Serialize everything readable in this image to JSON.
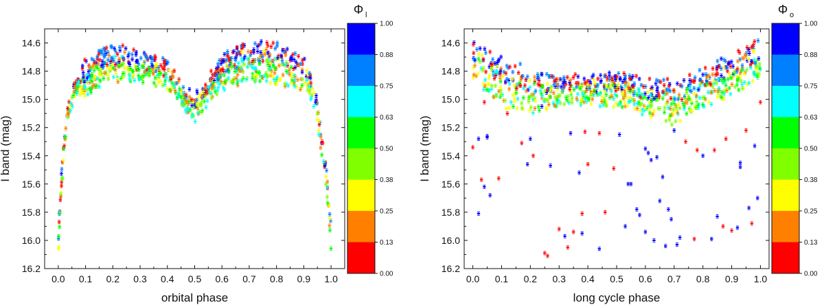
{
  "chart_data": [
    {
      "type": "scatter",
      "xlabel": "orbital phase",
      "ylabel": "I band (mag)",
      "xlim": [
        -0.05,
        1.05
      ],
      "ylim": [
        14.5,
        16.2
      ],
      "y_inverted": true,
      "x_ticks": [
        "0.0",
        "0.1",
        "0.2",
        "0.3",
        "0.4",
        "0.5",
        "0.6",
        "0.7",
        "0.8",
        "0.9",
        "1.0"
      ],
      "y_ticks": [
        "14.6",
        "14.8",
        "15.0",
        "15.2",
        "15.4",
        "15.6",
        "15.8",
        "16.0",
        "16.2"
      ],
      "colorbar": {
        "title_symbol": "Φ",
        "title_subscript": "l",
        "labels": [
          "0.00",
          "0.13",
          "0.25",
          "0.38",
          "0.50",
          "0.63",
          "0.75",
          "0.88",
          "1.00"
        ],
        "colors": [
          "#ff0000",
          "#ff8000",
          "#ffff00",
          "#80ff00",
          "#00ff00",
          "#00ffff",
          "#0080ff",
          "#0000ff"
        ]
      },
      "curve": {
        "upper": [
          [
            0.0,
            15.93
          ],
          [
            0.01,
            15.55
          ],
          [
            0.02,
            15.3
          ],
          [
            0.03,
            15.1
          ],
          [
            0.04,
            15.0
          ],
          [
            0.06,
            14.85
          ],
          [
            0.1,
            14.72
          ],
          [
            0.15,
            14.65
          ],
          [
            0.2,
            14.6
          ],
          [
            0.25,
            14.62
          ],
          [
            0.3,
            14.66
          ],
          [
            0.35,
            14.68
          ],
          [
            0.4,
            14.72
          ],
          [
            0.44,
            14.82
          ],
          [
            0.47,
            14.92
          ],
          [
            0.5,
            14.96
          ],
          [
            0.53,
            14.9
          ],
          [
            0.56,
            14.8
          ],
          [
            0.6,
            14.68
          ],
          [
            0.65,
            14.62
          ],
          [
            0.7,
            14.6
          ],
          [
            0.75,
            14.58
          ],
          [
            0.8,
            14.6
          ],
          [
            0.85,
            14.65
          ],
          [
            0.9,
            14.7
          ],
          [
            0.93,
            14.8
          ],
          [
            0.95,
            15.0
          ],
          [
            0.97,
            15.3
          ],
          [
            0.99,
            15.6
          ],
          [
            1.0,
            15.9
          ]
        ],
        "lower": [
          [
            0.0,
            16.12
          ],
          [
            0.01,
            15.75
          ],
          [
            0.02,
            15.45
          ],
          [
            0.03,
            15.25
          ],
          [
            0.04,
            15.1
          ],
          [
            0.06,
            15.0
          ],
          [
            0.1,
            14.98
          ],
          [
            0.15,
            14.92
          ],
          [
            0.2,
            14.88
          ],
          [
            0.25,
            14.88
          ],
          [
            0.3,
            14.88
          ],
          [
            0.35,
            14.9
          ],
          [
            0.4,
            14.93
          ],
          [
            0.44,
            15.0
          ],
          [
            0.47,
            15.1
          ],
          [
            0.5,
            15.16
          ],
          [
            0.53,
            15.08
          ],
          [
            0.56,
            15.0
          ],
          [
            0.6,
            14.95
          ],
          [
            0.65,
            14.9
          ],
          [
            0.7,
            14.88
          ],
          [
            0.75,
            14.88
          ],
          [
            0.8,
            14.9
          ],
          [
            0.85,
            14.92
          ],
          [
            0.9,
            14.95
          ],
          [
            0.93,
            15.05
          ],
          [
            0.95,
            15.2
          ],
          [
            0.97,
            15.45
          ],
          [
            0.99,
            15.8
          ],
          [
            1.0,
            16.08
          ]
        ]
      },
      "n_points": 900
    },
    {
      "type": "scatter",
      "xlabel": "long cycle phase",
      "ylabel": "I band (mag)",
      "xlim": [
        -0.03,
        1.03
      ],
      "ylim": [
        14.5,
        16.2
      ],
      "y_inverted": true,
      "x_ticks": [
        "0.0",
        "0.1",
        "0.2",
        "0.3",
        "0.4",
        "0.5",
        "0.6",
        "0.7",
        "0.8",
        "0.9",
        "1.0"
      ],
      "y_ticks": [
        "14.6",
        "14.8",
        "15.0",
        "15.2",
        "15.4",
        "15.6",
        "15.8",
        "16.0",
        "16.2"
      ],
      "colorbar": {
        "title_symbol": "Φ",
        "title_subscript": "o",
        "labels": [
          "0.00",
          "0.13",
          "0.25",
          "0.38",
          "0.50",
          "0.63",
          "0.75",
          "0.88",
          "1.00"
        ],
        "colors": [
          "#ff0000",
          "#ff8000",
          "#ffff00",
          "#80ff00",
          "#00ff00",
          "#00ffff",
          "#0080ff",
          "#0000ff"
        ]
      },
      "curve": {
        "upper": [
          [
            0.0,
            14.56
          ],
          [
            0.1,
            14.7
          ],
          [
            0.2,
            14.78
          ],
          [
            0.3,
            14.82
          ],
          [
            0.4,
            14.82
          ],
          [
            0.5,
            14.8
          ],
          [
            0.6,
            14.85
          ],
          [
            0.7,
            14.85
          ],
          [
            0.8,
            14.78
          ],
          [
            0.9,
            14.68
          ],
          [
            1.0,
            14.56
          ]
        ],
        "lower": [
          [
            0.0,
            14.85
          ],
          [
            0.1,
            15.05
          ],
          [
            0.2,
            15.1
          ],
          [
            0.3,
            15.05
          ],
          [
            0.4,
            15.05
          ],
          [
            0.5,
            15.05
          ],
          [
            0.6,
            15.12
          ],
          [
            0.7,
            15.18
          ],
          [
            0.8,
            15.05
          ],
          [
            0.9,
            14.98
          ],
          [
            1.0,
            14.85
          ]
        ]
      },
      "outliers": [
        {
          "x": 0.0,
          "y": 15.34,
          "c": "r"
        },
        {
          "x": 0.02,
          "y": 15.28,
          "c": "b"
        },
        {
          "x": 0.02,
          "y": 15.81,
          "c": "b"
        },
        {
          "x": 0.03,
          "y": 15.57,
          "c": "r"
        },
        {
          "x": 0.04,
          "y": 15.62,
          "c": "b"
        },
        {
          "x": 0.05,
          "y": 15.26,
          "c": "b"
        },
        {
          "x": 0.05,
          "y": 15.27,
          "c": "b"
        },
        {
          "x": 0.06,
          "y": 15.68,
          "c": "b"
        },
        {
          "x": 0.09,
          "y": 15.56,
          "c": "r"
        },
        {
          "x": 0.17,
          "y": 15.31,
          "c": "r"
        },
        {
          "x": 0.19,
          "y": 15.46,
          "c": "b"
        },
        {
          "x": 0.2,
          "y": 15.28,
          "c": "b"
        },
        {
          "x": 0.21,
          "y": 15.4,
          "c": "r"
        },
        {
          "x": 0.25,
          "y": 16.09,
          "c": "r"
        },
        {
          "x": 0.26,
          "y": 16.11,
          "c": "r"
        },
        {
          "x": 0.27,
          "y": 15.47,
          "c": "b"
        },
        {
          "x": 0.3,
          "y": 15.92,
          "c": "r"
        },
        {
          "x": 0.32,
          "y": 15.97,
          "c": "b"
        },
        {
          "x": 0.33,
          "y": 16.05,
          "c": "r"
        },
        {
          "x": 0.34,
          "y": 15.24,
          "c": "b"
        },
        {
          "x": 0.35,
          "y": 15.94,
          "c": "r"
        },
        {
          "x": 0.37,
          "y": 15.52,
          "c": "b"
        },
        {
          "x": 0.38,
          "y": 15.95,
          "c": "b"
        },
        {
          "x": 0.38,
          "y": 15.81,
          "c": "r"
        },
        {
          "x": 0.39,
          "y": 15.23,
          "c": "r"
        },
        {
          "x": 0.4,
          "y": 15.46,
          "c": "r"
        },
        {
          "x": 0.44,
          "y": 15.24,
          "c": "r"
        },
        {
          "x": 0.44,
          "y": 16.06,
          "c": "b"
        },
        {
          "x": 0.46,
          "y": 15.8,
          "c": "r"
        },
        {
          "x": 0.49,
          "y": 15.49,
          "c": "r"
        },
        {
          "x": 0.51,
          "y": 15.25,
          "c": "b"
        },
        {
          "x": 0.53,
          "y": 15.9,
          "c": "b"
        },
        {
          "x": 0.54,
          "y": 15.6,
          "c": "b"
        },
        {
          "x": 0.55,
          "y": 15.6,
          "c": "b"
        },
        {
          "x": 0.57,
          "y": 15.78,
          "c": "b"
        },
        {
          "x": 0.58,
          "y": 15.82,
          "c": "b"
        },
        {
          "x": 0.6,
          "y": 15.94,
          "c": "b"
        },
        {
          "x": 0.6,
          "y": 15.35,
          "c": "b"
        },
        {
          "x": 0.61,
          "y": 15.38,
          "c": "b"
        },
        {
          "x": 0.62,
          "y": 15.43,
          "c": "b"
        },
        {
          "x": 0.63,
          "y": 16.0,
          "c": "b"
        },
        {
          "x": 0.64,
          "y": 15.41,
          "c": "b"
        },
        {
          "x": 0.65,
          "y": 15.72,
          "c": "b"
        },
        {
          "x": 0.66,
          "y": 15.55,
          "c": "b"
        },
        {
          "x": 0.67,
          "y": 16.04,
          "c": "b"
        },
        {
          "x": 0.68,
          "y": 15.78,
          "c": "b"
        },
        {
          "x": 0.69,
          "y": 15.85,
          "c": "b"
        },
        {
          "x": 0.7,
          "y": 15.22,
          "c": "b"
        },
        {
          "x": 0.71,
          "y": 16.03,
          "c": "b"
        },
        {
          "x": 0.72,
          "y": 15.98,
          "c": "b"
        },
        {
          "x": 0.74,
          "y": 15.3,
          "c": "r"
        },
        {
          "x": 0.77,
          "y": 15.99,
          "c": "r"
        },
        {
          "x": 0.78,
          "y": 15.36,
          "c": "r"
        },
        {
          "x": 0.8,
          "y": 15.4,
          "c": "b"
        },
        {
          "x": 0.83,
          "y": 15.99,
          "c": "b"
        },
        {
          "x": 0.84,
          "y": 15.36,
          "c": "r"
        },
        {
          "x": 0.85,
          "y": 15.83,
          "c": "b"
        },
        {
          "x": 0.87,
          "y": 15.9,
          "c": "r"
        },
        {
          "x": 0.88,
          "y": 15.28,
          "c": "r"
        },
        {
          "x": 0.9,
          "y": 15.93,
          "c": "r"
        },
        {
          "x": 0.92,
          "y": 15.91,
          "c": "b"
        },
        {
          "x": 0.93,
          "y": 15.45,
          "c": "b"
        },
        {
          "x": 0.93,
          "y": 15.48,
          "c": "b"
        },
        {
          "x": 0.95,
          "y": 15.22,
          "c": "r"
        },
        {
          "x": 0.96,
          "y": 15.77,
          "c": "b"
        },
        {
          "x": 0.97,
          "y": 15.88,
          "c": "r"
        },
        {
          "x": 0.98,
          "y": 15.33,
          "c": "b"
        },
        {
          "x": 0.99,
          "y": 15.7,
          "c": "b"
        },
        {
          "x": 1.0,
          "y": 15.02,
          "c": "r"
        },
        {
          "x": 0.04,
          "y": 15.02,
          "c": "r"
        },
        {
          "x": 0.12,
          "y": 15.1,
          "c": "r"
        },
        {
          "x": 0.24,
          "y": 15.05,
          "c": "b"
        }
      ],
      "n_points": 800
    }
  ]
}
